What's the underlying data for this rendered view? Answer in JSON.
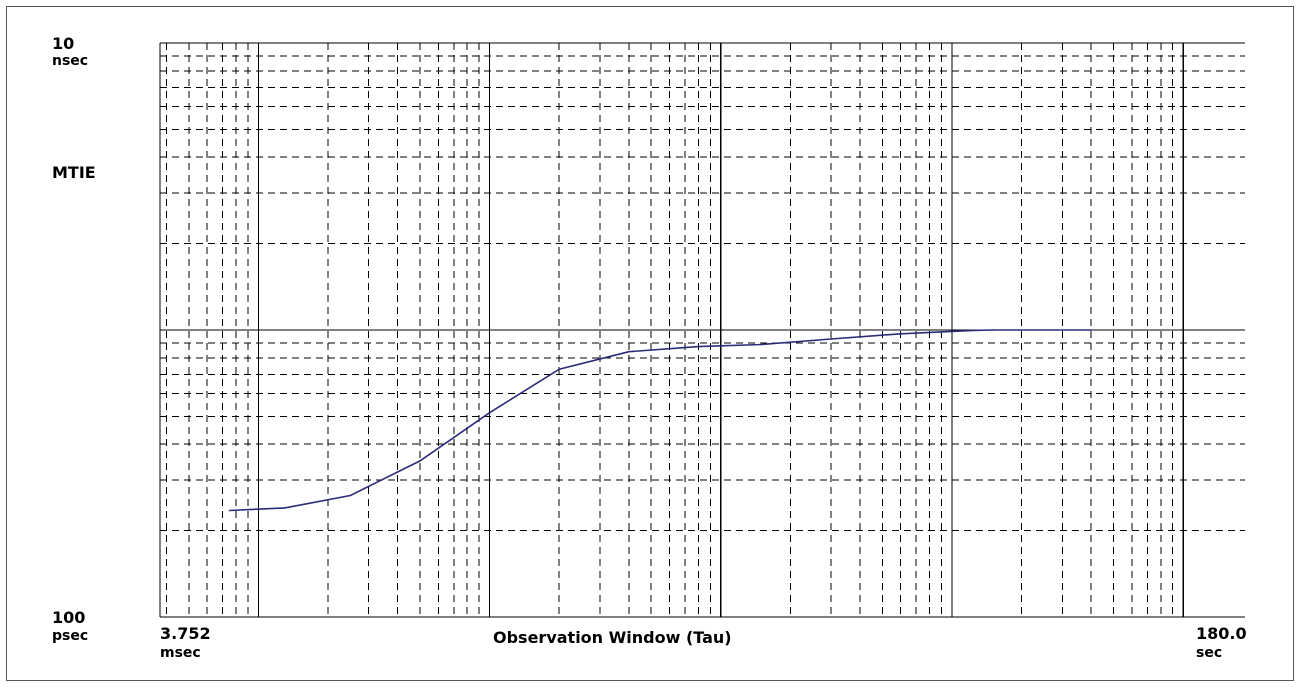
{
  "chart_data": {
    "type": "line",
    "title": "",
    "ylabel": "MTIE",
    "xlabel": "Observation Window (Tau)",
    "x_scale": "log",
    "y_scale": "log",
    "xlim": [
      0.003752,
      180.0
    ],
    "ylim": [
      1e-10,
      1e-08
    ],
    "y_top_value": "10",
    "y_top_unit": "nsec",
    "y_bottom_value": "100",
    "y_bottom_unit": "psec",
    "x_start_value": "3.752",
    "x_start_unit": "msec",
    "x_end_value": "180.0",
    "x_end_unit": "sec",
    "grid": true,
    "grid_style": "dashed minor lines, solid decade lines",
    "colors": {
      "line": "#2b2b7a",
      "grid": "#000000",
      "background": "#ffffff"
    },
    "series": [
      {
        "x": [
          0.0075,
          0.013,
          0.025,
          0.05,
          0.1,
          0.2,
          0.4,
          0.8,
          1.5,
          3.0,
          6.0,
          12.0,
          15.0,
          40.0
        ],
        "y": [
          2.35e-10,
          2.4e-10,
          2.65e-10,
          3.5e-10,
          5.15e-10,
          7.3e-10,
          8.4e-10,
          8.75e-10,
          8.9e-10,
          9.3e-10,
          9.7e-10,
          9.95e-10,
          1e-09,
          1e-09
        ]
      }
    ]
  }
}
